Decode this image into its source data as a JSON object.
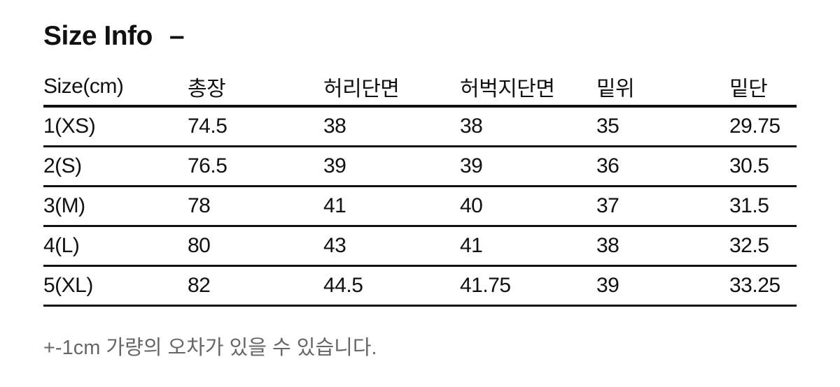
{
  "title": "Size Info",
  "title_toggle": "–",
  "table": {
    "headers": [
      "Size(cm)",
      "총장",
      "허리단면",
      "허벅지단면",
      "밑위",
      "밑단"
    ],
    "rows": [
      [
        "1(XS)",
        "74.5",
        "38",
        "38",
        "35",
        "29.75"
      ],
      [
        "2(S)",
        "76.5",
        "39",
        "39",
        "36",
        "30.5"
      ],
      [
        "3(M)",
        "78",
        "41",
        "40",
        "37",
        "31.5"
      ],
      [
        "4(L)",
        "80",
        "43",
        "41",
        "38",
        "32.5"
      ],
      [
        "5(XL)",
        "82",
        "44.5",
        "41.75",
        "39",
        "33.25"
      ]
    ]
  },
  "note": "+-1cm 가량의 오차가 있을 수 있습니다."
}
